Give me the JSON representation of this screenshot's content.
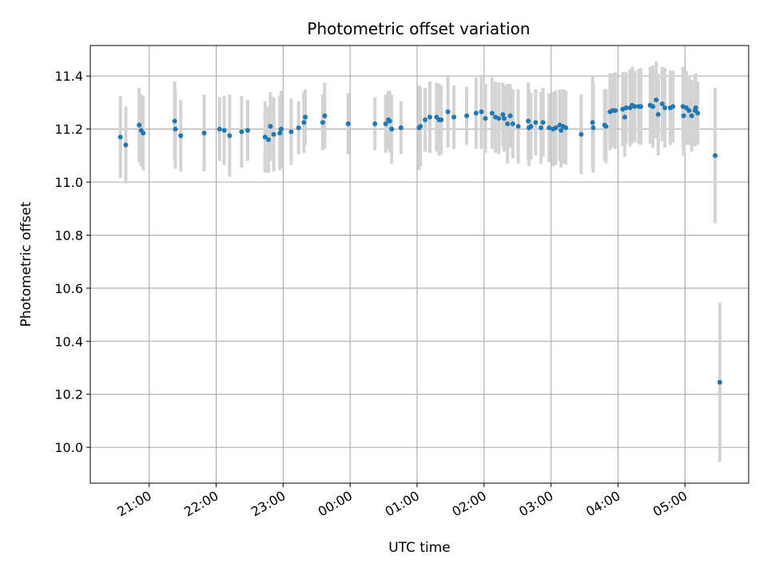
{
  "chart_data": {
    "type": "scatter",
    "title": "Photometric offset variation",
    "xlabel": "UTC time",
    "ylabel": "Photometric offset",
    "xlim": [
      20.12,
      29.95
    ],
    "ylim": [
      9.865,
      11.515
    ],
    "grid": true,
    "x_tick_values": [
      21,
      22,
      23,
      24,
      25,
      26,
      27,
      28,
      29
    ],
    "x_tick_labels": [
      "21:00",
      "22:00",
      "23:00",
      "00:00",
      "01:00",
      "02:00",
      "03:00",
      "04:00",
      "05:00"
    ],
    "y_tick_values": [
      10.0,
      10.2,
      10.4,
      10.6,
      10.8,
      11.0,
      11.2,
      11.4
    ],
    "y_tick_labels": [
      "10.0",
      "10.2",
      "10.4",
      "10.6",
      "10.8",
      "11.0",
      "11.2",
      "11.4"
    ],
    "colors": {
      "points": "#1f77b4",
      "errorbars": "#d3d3d3",
      "grid": "#b0b0b0"
    },
    "series": [
      {
        "x": [
          20.57,
          20.65,
          20.85,
          20.88,
          20.91,
          21.38,
          21.39,
          21.47,
          21.82,
          22.05,
          22.12,
          22.2,
          22.38,
          22.47,
          22.73,
          22.78,
          22.81,
          22.86,
          22.95,
          22.97,
          23.12,
          23.23,
          23.31,
          23.33,
          23.59,
          23.62,
          23.97,
          24.37,
          24.53,
          24.57,
          24.59,
          24.62,
          24.76,
          25.03,
          25.05,
          25.12,
          25.19,
          25.29,
          25.33,
          25.36,
          25.46,
          25.55,
          25.74,
          25.88,
          25.96,
          26.02,
          26.12,
          26.17,
          26.22,
          26.28,
          26.3,
          26.35,
          26.39,
          26.43,
          26.51,
          26.66,
          26.67,
          26.7,
          26.77,
          26.85,
          26.88,
          26.97,
          27.03,
          27.07,
          27.13,
          27.15,
          27.18,
          27.22,
          27.45,
          27.62,
          27.63,
          27.8,
          27.82,
          27.88,
          27.92,
          27.96,
          28.07,
          28.1,
          28.12,
          28.18,
          28.21,
          28.25,
          28.31,
          28.34,
          28.48,
          28.52,
          28.57,
          28.6,
          28.66,
          28.7,
          28.78,
          28.82,
          28.97,
          28.98,
          29.02,
          29.06,
          29.1,
          29.15,
          29.16,
          29.19,
          29.45,
          29.52
        ],
        "y": [
          11.17,
          11.14,
          11.215,
          11.195,
          11.185,
          11.23,
          11.2,
          11.175,
          11.185,
          11.2,
          11.195,
          11.175,
          11.19,
          11.195,
          11.17,
          11.16,
          11.21,
          11.18,
          11.185,
          11.2,
          11.19,
          11.205,
          11.225,
          11.245,
          11.225,
          11.25,
          11.22,
          11.22,
          11.22,
          11.235,
          11.23,
          11.2,
          11.205,
          11.205,
          11.21,
          11.235,
          11.245,
          11.245,
          11.235,
          11.235,
          11.265,
          11.245,
          11.25,
          11.26,
          11.265,
          11.24,
          11.26,
          11.245,
          11.24,
          11.255,
          11.24,
          11.22,
          11.25,
          11.22,
          11.21,
          11.23,
          11.205,
          11.21,
          11.225,
          11.205,
          11.225,
          11.205,
          11.2,
          11.205,
          11.215,
          11.195,
          11.21,
          11.205,
          11.18,
          11.225,
          11.205,
          11.215,
          11.21,
          11.265,
          11.27,
          11.27,
          11.275,
          11.245,
          11.28,
          11.28,
          11.29,
          11.285,
          11.285,
          11.285,
          11.29,
          11.285,
          11.31,
          11.255,
          11.295,
          11.28,
          11.28,
          11.285,
          11.285,
          11.25,
          11.28,
          11.27,
          11.25,
          11.27,
          11.28,
          11.26,
          11.1,
          10.245
        ],
        "yerr": [
          0.155,
          0.145,
          0.14,
          0.135,
          0.14,
          0.15,
          0.15,
          0.135,
          0.145,
          0.12,
          0.13,
          0.155,
          0.135,
          0.115,
          0.135,
          0.125,
          0.13,
          0.14,
          0.14,
          0.145,
          0.125,
          0.1,
          0.115,
          0.105,
          0.105,
          0.125,
          0.115,
          0.1,
          0.11,
          0.11,
          0.115,
          0.13,
          0.1,
          0.16,
          0.15,
          0.12,
          0.135,
          0.13,
          0.135,
          0.13,
          0.135,
          0.12,
          0.11,
          0.135,
          0.14,
          0.13,
          0.135,
          0.135,
          0.135,
          0.12,
          0.125,
          0.15,
          0.12,
          0.13,
          0.14,
          0.145,
          0.145,
          0.125,
          0.125,
          0.135,
          0.13,
          0.13,
          0.14,
          0.14,
          0.135,
          0.14,
          0.14,
          0.14,
          0.15,
          0.175,
          0.17,
          0.135,
          0.14,
          0.145,
          0.14,
          0.145,
          0.14,
          0.15,
          0.135,
          0.145,
          0.145,
          0.135,
          0.14,
          0.145,
          0.145,
          0.155,
          0.145,
          0.155,
          0.14,
          0.15,
          0.14,
          0.135,
          0.15,
          0.15,
          0.14,
          0.13,
          0.135,
          0.135,
          0.13,
          0.12,
          0.255,
          0.3
        ]
      }
    ]
  }
}
